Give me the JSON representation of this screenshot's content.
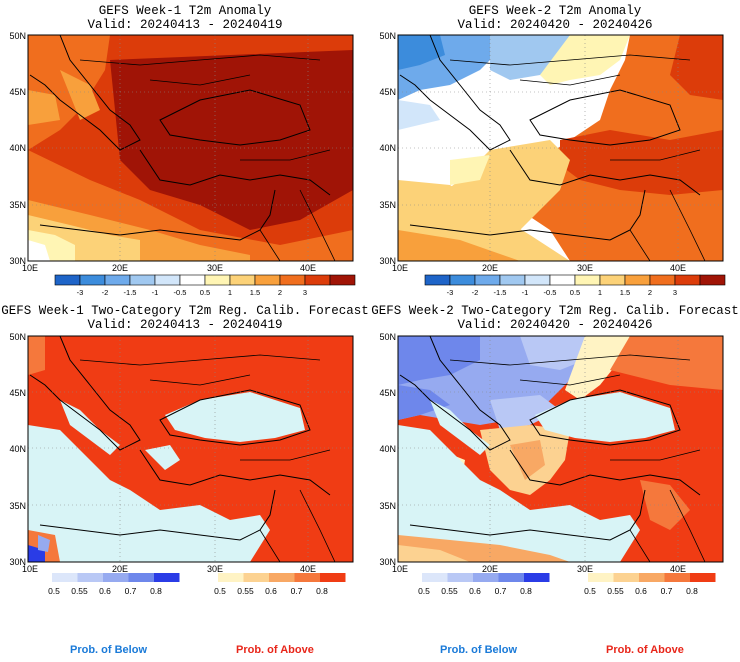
{
  "panels": [
    {
      "title": "GEFS Week-1 T2m Anomaly",
      "valid": "Valid: 20240413 - 20240419"
    },
    {
      "title": "GEFS Week-2 T2m Anomaly",
      "valid": "Valid: 20240420 - 20240426"
    },
    {
      "title": "GEFS Week-1 Two-Category T2m Reg. Calib. Forecast",
      "valid": "Valid: 20240413 - 20240419"
    },
    {
      "title": "GEFS Week-2 Two-Category T2m Reg. Calib. Forecast",
      "valid": "Valid: 20240420 - 20240426"
    }
  ],
  "axes": {
    "lat_labels": [
      "50N",
      "45N",
      "40N",
      "35N",
      "30N"
    ],
    "lon_labels": [
      "10E",
      "20E",
      "30E",
      "40E"
    ]
  },
  "anomaly_colorbar": {
    "labels": [
      "-3",
      "-2",
      "-1.5",
      "-1",
      "-0.5",
      "0.5",
      "1",
      "1.5",
      "2",
      "3"
    ],
    "colors": [
      "#1e64c8",
      "#3c8cdc",
      "#6eaaeb",
      "#a0c8f0",
      "#d2e6fa",
      "#ffffff",
      "#fff5b4",
      "#fcd278",
      "#f8a03c",
      "#f06e1e",
      "#dc3c0a",
      "#a01406"
    ]
  },
  "prob_colorbars": {
    "below_labels": [
      "0.5",
      "0.55",
      "0.6",
      "0.7",
      "0.8"
    ],
    "below_colors": [
      "#dce6fa",
      "#b9c8f5",
      "#96aaf0",
      "#6e87eb",
      "#2a3ce6"
    ],
    "above_labels": [
      "0.5",
      "0.55",
      "0.6",
      "0.7",
      "0.8"
    ],
    "above_colors": [
      "#fff3c4",
      "#fcd291",
      "#f8a864",
      "#f5783c",
      "#f03c14"
    ]
  },
  "footer": {
    "below_label": "Prob. of Below",
    "above_label": "Prob. of Above"
  }
}
